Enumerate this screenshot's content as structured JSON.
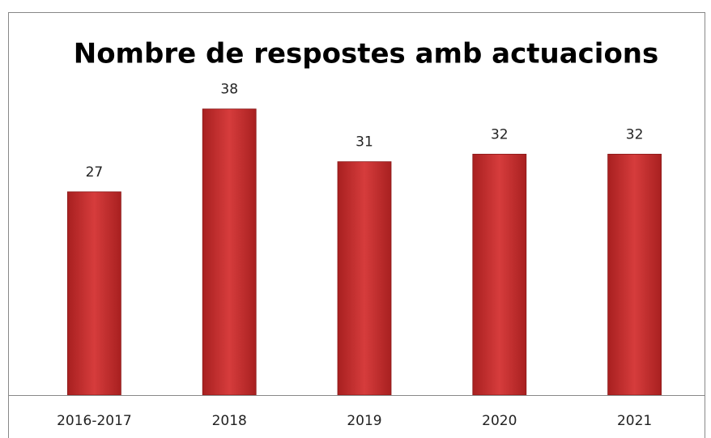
{
  "chart_data": {
    "type": "bar",
    "title": "Nombre de respostes amb actuacions",
    "categories": [
      "2016-2017",
      "2018",
      "2019",
      "2020",
      "2021"
    ],
    "values": [
      27,
      38,
      31,
      32,
      32
    ],
    "color": "#d63c3c",
    "ylim": [
      0,
      40
    ],
    "grid": false
  }
}
